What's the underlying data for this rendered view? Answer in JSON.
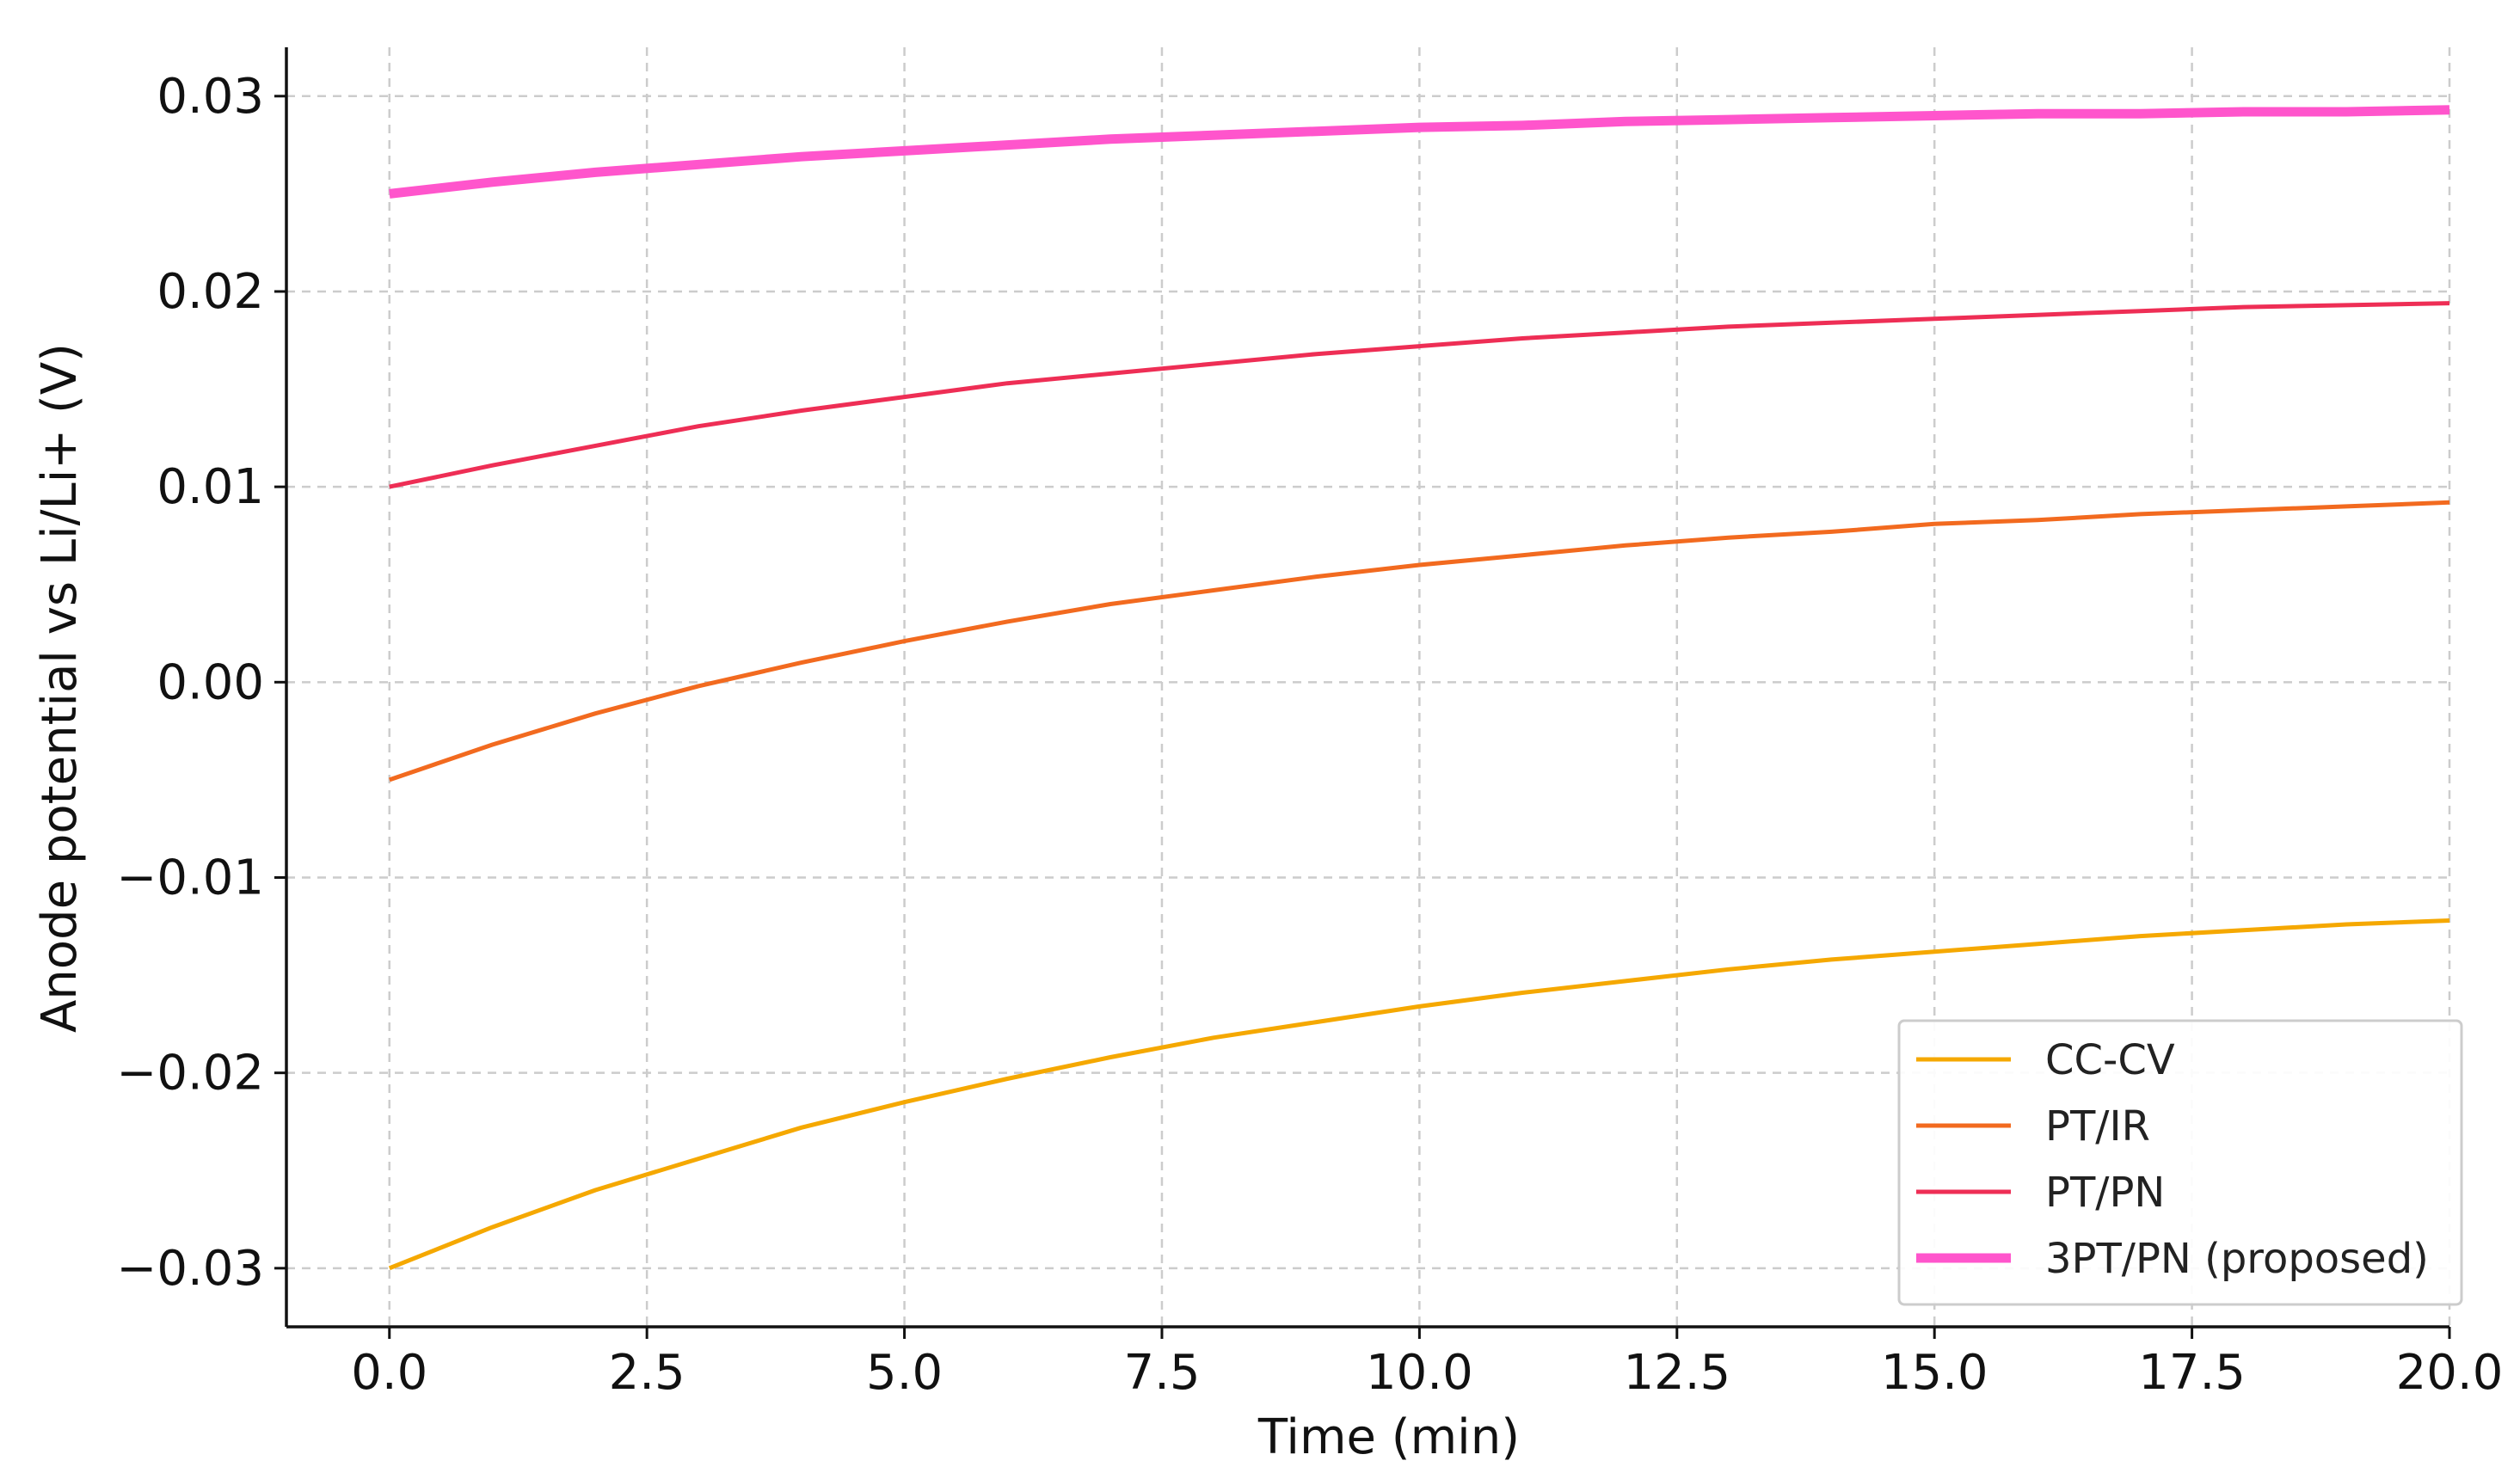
{
  "chart_data": {
    "type": "line",
    "title": "",
    "xlabel": "Time (min)",
    "ylabel": "Anode potential vs Li/Li+ (V)",
    "xlim": [
      -1.0,
      20.0
    ],
    "ylim": [
      -0.033,
      0.0325
    ],
    "grid": true,
    "legend_position": "bottom-right",
    "x_ticks": [
      {
        "value": 0.0,
        "label": "0.0"
      },
      {
        "value": 2.5,
        "label": "2.5"
      },
      {
        "value": 5.0,
        "label": "5.0"
      },
      {
        "value": 7.5,
        "label": "7.5"
      },
      {
        "value": 10.0,
        "label": "10.0"
      },
      {
        "value": 12.5,
        "label": "12.5"
      },
      {
        "value": 15.0,
        "label": "15.0"
      },
      {
        "value": 17.5,
        "label": "17.5"
      },
      {
        "value": 20.0,
        "label": "20.0"
      }
    ],
    "y_ticks": [
      {
        "value": 0.03,
        "label": "0.03"
      },
      {
        "value": 0.02,
        "label": "0.02"
      },
      {
        "value": 0.01,
        "label": "0.01"
      },
      {
        "value": 0.0,
        "label": "0.00"
      },
      {
        "value": -0.01,
        "label": "−0.01"
      },
      {
        "value": -0.02,
        "label": "−0.02"
      },
      {
        "value": -0.03,
        "label": "−0.03"
      }
    ],
    "x": [
      0,
      1,
      2,
      3,
      4,
      5,
      6,
      7,
      8,
      9,
      10,
      11,
      12,
      13,
      14,
      15,
      16,
      17,
      18,
      19,
      20
    ],
    "series": [
      {
        "name": "CC-CV",
        "color": "#f5a800",
        "width": 5,
        "values": [
          -0.03,
          -0.0279,
          -0.026,
          -0.0244,
          -0.0228,
          -0.0215,
          -0.0203,
          -0.0192,
          -0.0182,
          -0.0174,
          -0.0166,
          -0.0159,
          -0.0153,
          -0.0147,
          -0.0142,
          -0.0138,
          -0.0134,
          -0.013,
          -0.0127,
          -0.0124,
          -0.0122
        ]
      },
      {
        "name": "PT/IR",
        "color": "#f26a1f",
        "width": 5,
        "values": [
          -0.005,
          -0.0032,
          -0.0016,
          -0.0002,
          0.001,
          0.0021,
          0.0031,
          0.004,
          0.0047,
          0.0054,
          0.006,
          0.0065,
          0.007,
          0.0074,
          0.0077,
          0.0081,
          0.0083,
          0.0086,
          0.0088,
          0.009,
          0.0092
        ]
      },
      {
        "name": "PT/PN",
        "color": "#ee2e55",
        "width": 5,
        "values": [
          0.01,
          0.0111,
          0.0121,
          0.0131,
          0.0139,
          0.0146,
          0.0153,
          0.0158,
          0.0163,
          0.0168,
          0.0172,
          0.0176,
          0.0179,
          0.0182,
          0.0184,
          0.0186,
          0.0188,
          0.019,
          0.0192,
          0.0193,
          0.0194
        ]
      },
      {
        "name": "3PT/PN (proposed)",
        "color": "#ff55cc",
        "width": 11,
        "values": [
          0.025,
          0.0256,
          0.0261,
          0.0265,
          0.0269,
          0.0272,
          0.0275,
          0.0278,
          0.028,
          0.0282,
          0.0284,
          0.0285,
          0.0287,
          0.0288,
          0.0289,
          0.029,
          0.0291,
          0.0291,
          0.0292,
          0.0292,
          0.0293
        ]
      }
    ]
  }
}
